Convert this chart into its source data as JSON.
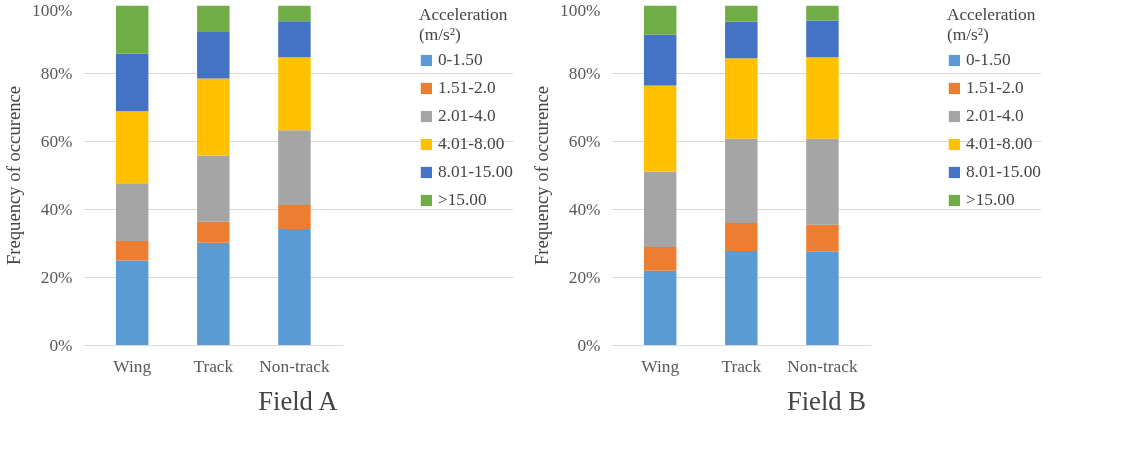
{
  "chart_data": [
    {
      "type": "bar",
      "stacked": true,
      "title": "Field A",
      "ylabel": "Frequency of occurence",
      "legend_title": "Acceleration (m/s²)",
      "legend": "right",
      "grid": "y",
      "categories": [
        "Wing",
        "Track",
        "Non-track"
      ],
      "ylim": [
        0,
        100
      ],
      "yticks": [
        {
          "value": 0,
          "label": "0%"
        },
        {
          "value": 20,
          "label": "20%"
        },
        {
          "value": 40,
          "label": "40%"
        },
        {
          "value": 60,
          "label": "60%"
        },
        {
          "value": 80,
          "label": "80%"
        },
        {
          "value": 100,
          "label": "100%"
        }
      ],
      "series": [
        {
          "name": "0-1.50",
          "color": "#5b9bd5",
          "values": [
            25.0,
            30.2,
            34.3
          ]
        },
        {
          "name": "1.51-2.0",
          "color": "#ed7d31",
          "values": [
            5.7,
            6.2,
            7.0
          ]
        },
        {
          "name": "2.01-4.0",
          "color": "#a5a5a5",
          "values": [
            17.0,
            19.5,
            22.0
          ]
        },
        {
          "name": "4.01-8.00",
          "color": "#ffc000",
          "values": [
            21.2,
            22.6,
            21.5
          ]
        },
        {
          "name": "8.01-15.00",
          "color": "#4472c4",
          "values": [
            16.9,
            13.7,
            10.6
          ]
        },
        {
          "name": ">15.00",
          "color": "#70ad47",
          "values": [
            14.2,
            7.8,
            4.6
          ]
        }
      ]
    },
    {
      "type": "bar",
      "stacked": true,
      "title": "Field B",
      "ylabel": "Frequency of occurence",
      "legend_title": "Acceleration (m/s²)",
      "legend": "right",
      "grid": "y",
      "categories": [
        "Wing",
        "Track",
        "Non-track"
      ],
      "ylim": [
        0,
        100
      ],
      "yticks": [
        {
          "value": 0,
          "label": "0%"
        },
        {
          "value": 20,
          "label": "20%"
        },
        {
          "value": 40,
          "label": "40%"
        },
        {
          "value": 60,
          "label": "60%"
        },
        {
          "value": 80,
          "label": "80%"
        },
        {
          "value": 100,
          "label": "100%"
        }
      ],
      "series": [
        {
          "name": "0-1.50",
          "color": "#5b9bd5",
          "values": [
            22.0,
            27.8,
            27.6
          ]
        },
        {
          "name": "1.51-2.0",
          "color": "#ed7d31",
          "values": [
            7.0,
            8.2,
            7.9
          ]
        },
        {
          "name": "2.01-4.0",
          "color": "#a5a5a5",
          "values": [
            22.2,
            24.8,
            25.3
          ]
        },
        {
          "name": "4.01-8.00",
          "color": "#ffc000",
          "values": [
            25.3,
            23.7,
            24.0
          ]
        },
        {
          "name": "8.01-15.00",
          "color": "#4472c4",
          "values": [
            14.9,
            10.7,
            10.8
          ]
        },
        {
          "name": ">15.00",
          "color": "#70ad47",
          "values": [
            8.6,
            4.8,
            4.4
          ]
        }
      ]
    }
  ]
}
